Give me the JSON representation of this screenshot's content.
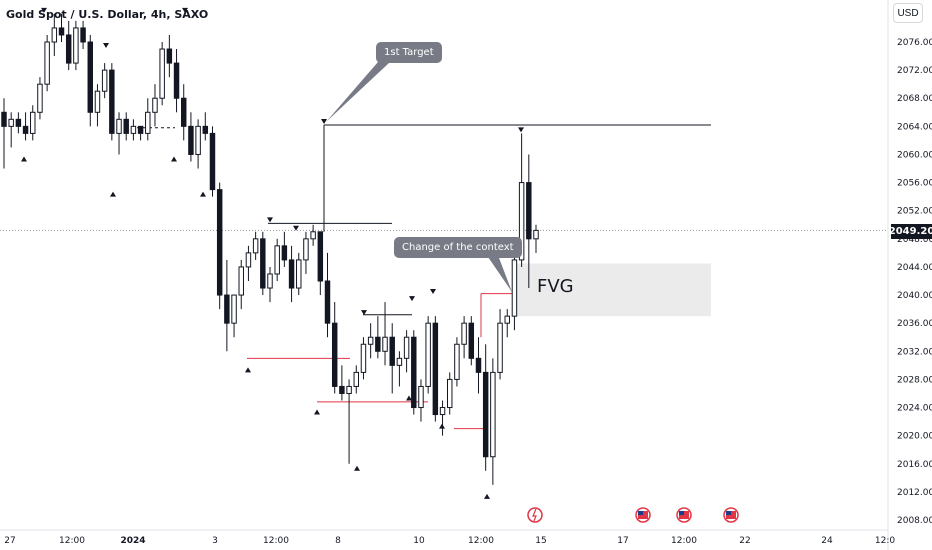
{
  "header": {
    "symbol_title": "Gold Spot / U.S. Dollar, 4h, SAXO"
  },
  "toolbar": {
    "currency_button": "USD"
  },
  "last_price_label": "2049.20",
  "annotations": {
    "first_target": "1st Target",
    "change_of_context": "Change of the context",
    "fvg": "FVG"
  },
  "event_icons": [
    "flash-event-icon",
    "us-flag-icon",
    "us-flag-icon",
    "us-flag-icon"
  ],
  "colors": {
    "candle_body": "#131722",
    "level_line_red": "#e03545",
    "level_line_dark": "#131722",
    "fvg_zone": "#ebebeb",
    "callout_bg": "#787b86"
  },
  "chart_data": {
    "type": "candlestick",
    "title": "Gold Spot / U.S. Dollar, 4h, SAXO",
    "currency": "USD",
    "ylim": [
      2008,
      2080
    ],
    "yticks": [
      "2076.00",
      "2072.00",
      "2068.00",
      "2064.00",
      "2060.00",
      "2056.00",
      "2052.00",
      "2048.00",
      "2044.00",
      "2040.00",
      "2036.00",
      "2032.00",
      "2028.00",
      "2024.00",
      "2020.00",
      "2016.00",
      "2012.00",
      "2008.00"
    ],
    "xticks": [
      "27",
      "12:00",
      "2024",
      "3",
      "12:00",
      "8",
      "10",
      "12:00",
      "15",
      "17",
      "12:00",
      "22",
      "24",
      "12:0"
    ],
    "last_price": 2049.2,
    "candles": [
      [
        2066,
        2068,
        2058,
        2064
      ],
      [
        2064,
        2066,
        2061,
        2065
      ],
      [
        2065,
        2066,
        2063,
        2064
      ],
      [
        2064,
        2066,
        2062,
        2063
      ],
      [
        2063,
        2067,
        2062,
        2066
      ],
      [
        2066,
        2071,
        2065,
        2070
      ],
      [
        2070,
        2077,
        2069,
        2076
      ],
      [
        2076,
        2080,
        2074,
        2078
      ],
      [
        2078,
        2080,
        2076,
        2077
      ],
      [
        2077,
        2079,
        2072,
        2073
      ],
      [
        2073,
        2079,
        2072,
        2078
      ],
      [
        2078,
        2079,
        2075,
        2076
      ],
      [
        2076,
        2077,
        2064,
        2066
      ],
      [
        2066,
        2070,
        2064,
        2069
      ],
      [
        2069,
        2073,
        2068,
        2072
      ],
      [
        2072,
        2073,
        2062,
        2063
      ],
      [
        2063,
        2066,
        2060,
        2065
      ],
      [
        2065,
        2066,
        2062,
        2063
      ],
      [
        2063,
        2065,
        2062,
        2064
      ],
      [
        2064,
        2064,
        2062,
        2063
      ],
      [
        2063,
        2068,
        2062,
        2066
      ],
      [
        2066,
        2070,
        2064,
        2068
      ],
      [
        2068,
        2076,
        2067,
        2075
      ],
      [
        2075,
        2077,
        2071,
        2073
      ],
      [
        2073,
        2075,
        2066,
        2068
      ],
      [
        2068,
        2070,
        2062,
        2064
      ],
      [
        2064,
        2066,
        2059,
        2060
      ],
      [
        2060,
        2065,
        2058,
        2064
      ],
      [
        2064,
        2066,
        2062,
        2063
      ],
      [
        2063,
        2064,
        2054,
        2055
      ],
      [
        2055,
        2056,
        2038,
        2040
      ],
      [
        2040,
        2045,
        2032,
        2036
      ],
      [
        2036,
        2040,
        2034,
        2040
      ],
      [
        2040,
        2045,
        2038,
        2044
      ],
      [
        2044,
        2047,
        2042,
        2046
      ],
      [
        2046,
        2049,
        2045,
        2048
      ],
      [
        2048,
        2049,
        2040,
        2041
      ],
      [
        2041,
        2044,
        2039,
        2043
      ],
      [
        2043,
        2048,
        2042,
        2047
      ],
      [
        2047,
        2049,
        2044,
        2045
      ],
      [
        2045,
        2047,
        2039,
        2041
      ],
      [
        2041,
        2046,
        2040,
        2045
      ],
      [
        2045,
        2049,
        2043,
        2048
      ],
      [
        2048,
        2050,
        2047,
        2049
      ],
      [
        2049,
        2049,
        2040,
        2042
      ],
      [
        2042,
        2046,
        2034,
        2036
      ],
      [
        2036,
        2039,
        2026,
        2027
      ],
      [
        2027,
        2030,
        2025,
        2026
      ],
      [
        2026,
        2028,
        2016,
        2027
      ],
      [
        2027,
        2030,
        2026,
        2029
      ],
      [
        2029,
        2034,
        2028,
        2033
      ],
      [
        2033,
        2036,
        2031,
        2034
      ],
      [
        2034,
        2037,
        2031,
        2032
      ],
      [
        2032,
        2039,
        2030,
        2034
      ],
      [
        2034,
        2036,
        2026,
        2030
      ],
      [
        2030,
        2032,
        2027,
        2031
      ],
      [
        2031,
        2035,
        2029,
        2034
      ],
      [
        2034,
        2035,
        2023,
        2024
      ],
      [
        2024,
        2028,
        2022,
        2027
      ],
      [
        2027,
        2037,
        2026,
        2036
      ],
      [
        2036,
        2037,
        2022,
        2023
      ],
      [
        2023,
        2025,
        2020,
        2024
      ],
      [
        2024,
        2029,
        2023,
        2028
      ],
      [
        2028,
        2034,
        2027,
        2033
      ],
      [
        2033,
        2037,
        2031,
        2036
      ],
      [
        2036,
        2037,
        2030,
        2031
      ],
      [
        2031,
        2034,
        2026,
        2029
      ],
      [
        2029,
        2033,
        2015,
        2017
      ],
      [
        2017,
        2031,
        2013,
        2029
      ],
      [
        2029,
        2038,
        2028,
        2036
      ],
      [
        2036,
        2038,
        2034,
        2037
      ],
      [
        2037,
        2046,
        2035,
        2045
      ],
      [
        2045,
        2063,
        2044,
        2056
      ],
      [
        2056,
        2060,
        2041,
        2048
      ],
      [
        2048,
        2050,
        2046,
        2049.2
      ]
    ]
  }
}
